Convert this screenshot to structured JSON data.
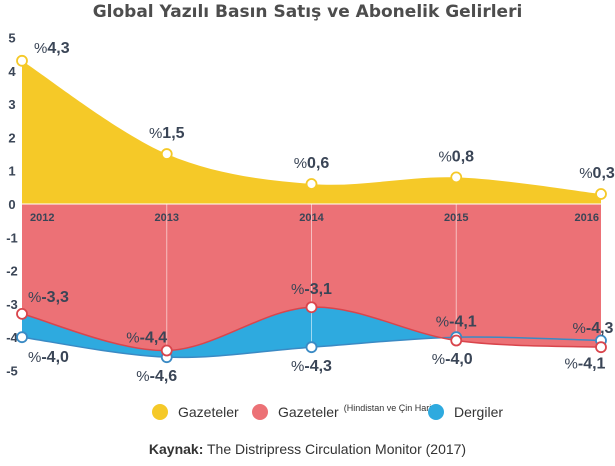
{
  "title": "Global Yazılı Basın Satış ve Abonelik Gelirleri",
  "colors": {
    "newspapers": "#f5c928",
    "newspapers_ex": "#ec7176",
    "magazines": "#2eaadf",
    "magazines_line": "#3a8ac4",
    "label_text": "#3a4556",
    "axis_text": "#3a4556",
    "year_text_light": "#ffffff"
  },
  "chart_data": {
    "type": "area",
    "title": "Global Yazılı Basın Satış ve Abonelik Gelirleri",
    "x": [
      "2012",
      "2013",
      "2014",
      "2015",
      "2016"
    ],
    "ylim": [
      -5,
      5
    ],
    "yticks": [
      "5",
      "4",
      "3",
      "2",
      "1",
      "0",
      "-1",
      "-2",
      "-3",
      "-4",
      "-5"
    ],
    "series": [
      {
        "name": "Gazeteler",
        "values": [
          4.3,
          1.5,
          0.6,
          0.8,
          0.3
        ],
        "labels": [
          "%4,3",
          "%1,5",
          "%0,6",
          "%0,8",
          "%0,3"
        ]
      },
      {
        "name": "Gazeteler (Hindistan ve Çin Hariç)",
        "values": [
          -3.3,
          -4.4,
          -3.1,
          -4.1,
          -4.3
        ],
        "labels": [
          "%-3,3",
          "%-4,4",
          "%-3,1",
          "%-4,1",
          "%-4,3"
        ]
      },
      {
        "name": "Dergiler",
        "values": [
          -4.0,
          -4.6,
          -4.3,
          -4.0,
          -4.1
        ],
        "labels": [
          "%-4,0",
          "%-4,6",
          "%-4,3",
          "%-4,0",
          "%-4,1"
        ]
      }
    ],
    "grid": false,
    "legend_position": "bottom"
  },
  "legend": {
    "items": [
      {
        "label": "Gazeteler",
        "sub": ""
      },
      {
        "label": "Gazeteler",
        "sub": "(Hindistan ve Çin Hariç)"
      },
      {
        "label": "Dergiler",
        "sub": ""
      }
    ]
  },
  "source": {
    "prefix": "Kaynak:",
    "text": " The Distripress Circulation Monitor (2017)"
  }
}
